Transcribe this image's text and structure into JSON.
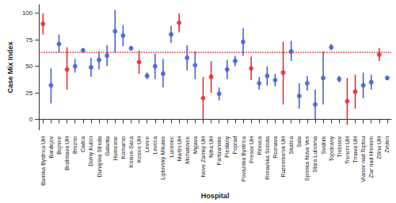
{
  "chart_data": {
    "type": "errorbar",
    "x_label": "Hospital",
    "y_label": "Case Mix Index",
    "categories": [
      "Banska Bystrica UH",
      "Bardejov",
      "Bojnice",
      "Bratislava UH",
      "Brezno",
      "Cadca",
      "Dolny Kubin",
      "Dunajska Streda",
      "Galanta",
      "Humenne",
      "Komarno",
      "Kosice-Saca",
      "Kosice UH",
      "Levice",
      "Levoca",
      "Liptovsky Mikulas",
      "Lucenec",
      "Martin UH",
      "Michalovce",
      "Myjava",
      "Nove Zamky UH",
      "Nitra UH",
      "Partizanske",
      "Piestany",
      "Poprad",
      "Povazska Bystrica",
      "Presov UH",
      "Revuca",
      "Rimavska Sobota",
      "Roznava",
      "Ruzomberok UH",
      "Skalica",
      "Sala",
      "Spisska Nova Ves",
      "Stara Lubovna",
      "Svidnik",
      "Topolcany",
      "Trebisov",
      "Trencin UH",
      "Trnava UH",
      "Vranov nad Toplou",
      "Ziar nad Hronom",
      "Zilina UH",
      "Zvolen"
    ],
    "values": [
      90,
      32,
      71,
      47,
      50,
      65,
      49,
      56,
      60,
      83,
      79,
      67,
      54,
      41,
      50,
      43,
      80,
      91,
      58,
      51,
      20,
      40,
      24,
      47,
      55,
      73,
      48,
      34,
      41,
      37,
      44,
      64,
      22,
      34,
      14,
      39,
      68,
      38,
      17,
      26,
      32,
      35,
      61,
      39
    ],
    "ci_lower": [
      80,
      15,
      63,
      28,
      44,
      63,
      40,
      47,
      50,
      63,
      69,
      65,
      43,
      38,
      38,
      30,
      72,
      82,
      46,
      38,
      0,
      25,
      18,
      38,
      50,
      60,
      37,
      28,
      32,
      31,
      14,
      55,
      10,
      27,
      0,
      14,
      65,
      35,
      -5,
      10,
      20,
      28,
      55,
      37
    ],
    "ci_upper": [
      100,
      48,
      80,
      68,
      57,
      67,
      58,
      64,
      70,
      103,
      89,
      69,
      65,
      44,
      62,
      57,
      88,
      100,
      70,
      64,
      40,
      55,
      30,
      56,
      60,
      86,
      59,
      40,
      50,
      43,
      73,
      74,
      34,
      41,
      28,
      64,
      71,
      41,
      39,
      42,
      44,
      42,
      67,
      41
    ],
    "colors": [
      "#e3262a",
      "#3b5bd6",
      "#3b5bd6",
      "#e3262a",
      "#3b5bd6",
      "#3b5bd6",
      "#3b5bd6",
      "#3b5bd6",
      "#3b5bd6",
      "#3b5bd6",
      "#3b5bd6",
      "#3b5bd6",
      "#e3262a",
      "#3b5bd6",
      "#3b5bd6",
      "#3b5bd6",
      "#3b5bd6",
      "#e3262a",
      "#3b5bd6",
      "#3b5bd6",
      "#e3262a",
      "#e3262a",
      "#3b5bd6",
      "#3b5bd6",
      "#3b5bd6",
      "#3b5bd6",
      "#e3262a",
      "#3b5bd6",
      "#3b5bd6",
      "#3b5bd6",
      "#e3262a",
      "#3b5bd6",
      "#3b5bd6",
      "#3b5bd6",
      "#3b5bd6",
      "#3b5bd6",
      "#3b5bd6",
      "#3b5bd6",
      "#e3262a",
      "#e3262a",
      "#3b5bd6",
      "#3b5bd6",
      "#e3262a",
      "#3b5bd6"
    ],
    "reference_line": 63,
    "reference_line_color": "#e3262a",
    "marker": "circle",
    "ylim": [
      -10,
      108
    ],
    "yticks": [
      0,
      25,
      50,
      75,
      100
    ],
    "grid": false
  }
}
